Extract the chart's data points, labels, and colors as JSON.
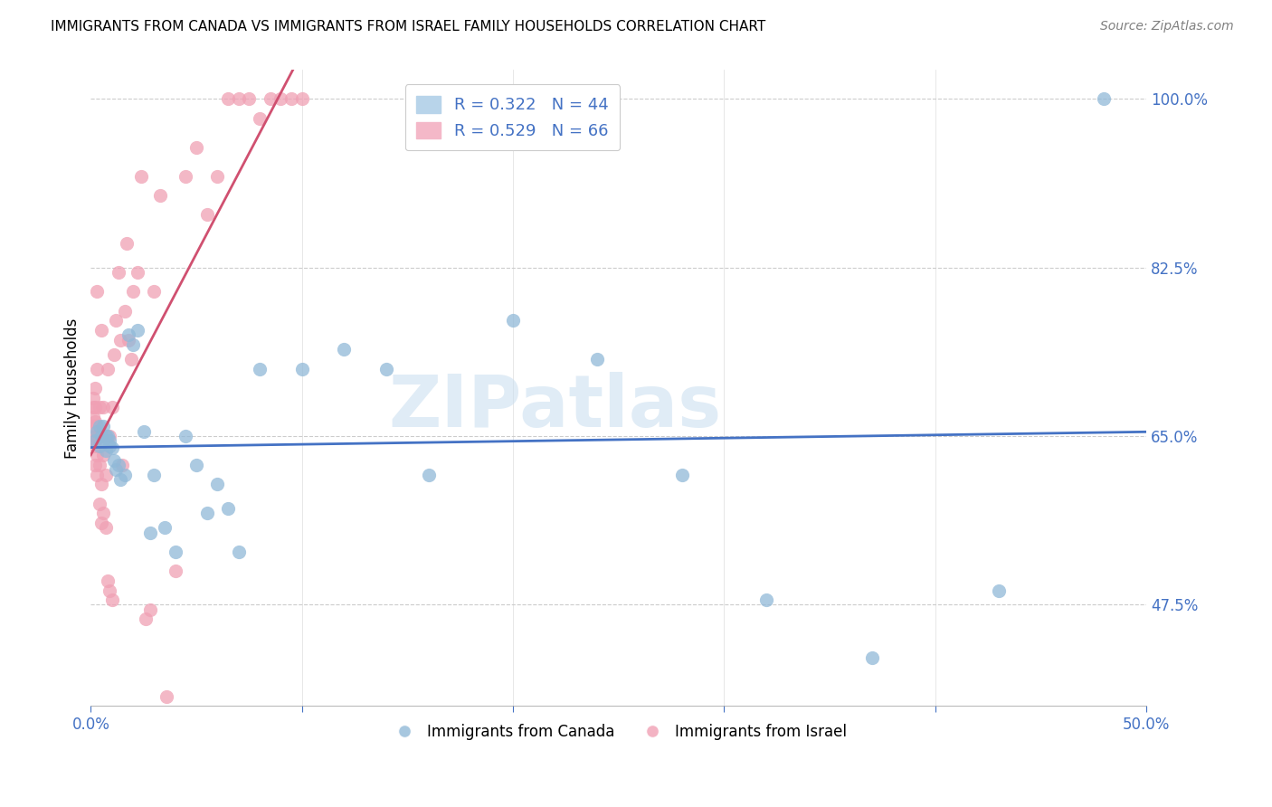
{
  "title": "IMMIGRANTS FROM CANADA VS IMMIGRANTS FROM ISRAEL FAMILY HOUSEHOLDS CORRELATION CHART",
  "source": "Source: ZipAtlas.com",
  "ylabel": "Family Households",
  "xlim": [
    0.0,
    0.5
  ],
  "ylim": [
    0.37,
    1.03
  ],
  "ytick_labels_right": [
    "100.0%",
    "82.5%",
    "65.0%",
    "47.5%"
  ],
  "ytick_values_right": [
    1.0,
    0.825,
    0.65,
    0.475
  ],
  "watermark": "ZIPatlas",
  "blue_color": "#91b9d8",
  "pink_color": "#f0a0b4",
  "blue_line_color": "#4472c4",
  "pink_line_color": "#d05070",
  "canada_x": [
    0.002,
    0.003,
    0.004,
    0.004,
    0.005,
    0.006,
    0.006,
    0.007,
    0.007,
    0.008,
    0.009,
    0.009,
    0.01,
    0.011,
    0.012,
    0.013,
    0.014,
    0.016,
    0.018,
    0.02,
    0.022,
    0.025,
    0.028,
    0.03,
    0.035,
    0.04,
    0.045,
    0.05,
    0.055,
    0.06,
    0.065,
    0.07,
    0.08,
    0.1,
    0.12,
    0.14,
    0.16,
    0.2,
    0.24,
    0.28,
    0.32,
    0.37,
    0.43,
    0.48
  ],
  "canada_y": [
    0.645,
    0.655,
    0.66,
    0.64,
    0.65,
    0.66,
    0.645,
    0.65,
    0.635,
    0.65,
    0.645,
    0.64,
    0.638,
    0.625,
    0.615,
    0.62,
    0.605,
    0.61,
    0.755,
    0.745,
    0.76,
    0.655,
    0.55,
    0.61,
    0.555,
    0.53,
    0.65,
    0.62,
    0.57,
    0.6,
    0.575,
    0.53,
    0.72,
    0.72,
    0.74,
    0.72,
    0.61,
    0.77,
    0.73,
    0.61,
    0.48,
    0.42,
    0.49,
    1.0
  ],
  "israel_x": [
    0.001,
    0.001,
    0.001,
    0.001,
    0.001,
    0.002,
    0.002,
    0.002,
    0.002,
    0.002,
    0.002,
    0.003,
    0.003,
    0.003,
    0.003,
    0.003,
    0.003,
    0.004,
    0.004,
    0.004,
    0.004,
    0.005,
    0.005,
    0.005,
    0.005,
    0.006,
    0.006,
    0.006,
    0.007,
    0.007,
    0.008,
    0.008,
    0.009,
    0.009,
    0.01,
    0.01,
    0.011,
    0.012,
    0.013,
    0.014,
    0.015,
    0.016,
    0.017,
    0.018,
    0.019,
    0.02,
    0.022,
    0.024,
    0.026,
    0.028,
    0.03,
    0.033,
    0.036,
    0.04,
    0.045,
    0.05,
    0.055,
    0.06,
    0.065,
    0.07,
    0.075,
    0.08,
    0.085,
    0.09,
    0.095,
    0.1
  ],
  "israel_y": [
    0.645,
    0.66,
    0.67,
    0.68,
    0.69,
    0.62,
    0.64,
    0.65,
    0.665,
    0.68,
    0.7,
    0.61,
    0.63,
    0.65,
    0.66,
    0.72,
    0.8,
    0.58,
    0.62,
    0.65,
    0.68,
    0.56,
    0.6,
    0.65,
    0.76,
    0.57,
    0.63,
    0.68,
    0.555,
    0.61,
    0.5,
    0.72,
    0.49,
    0.65,
    0.48,
    0.68,
    0.735,
    0.77,
    0.82,
    0.75,
    0.62,
    0.78,
    0.85,
    0.75,
    0.73,
    0.8,
    0.82,
    0.92,
    0.46,
    0.47,
    0.8,
    0.9,
    0.38,
    0.51,
    0.92,
    0.95,
    0.88,
    0.92,
    1.0,
    1.0,
    1.0,
    0.98,
    1.0,
    1.0,
    1.0,
    1.0
  ]
}
